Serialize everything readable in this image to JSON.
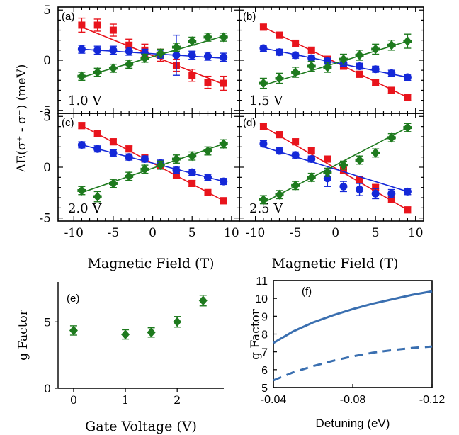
{
  "colors": {
    "red": "#e8141c",
    "blue": "#1428d8",
    "green": "#1e7a1e",
    "f_line": "#3a6fb0"
  },
  "shared": {
    "ylabel": "ΔE(σ⁺ - σ⁻) (meV)",
    "xlabel": "Magnetic Field (T)",
    "y_ticks": [
      "5",
      "0",
      "-5"
    ],
    "x_ticks": [
      "-10",
      "-5",
      "0",
      "5",
      "10"
    ]
  },
  "chart_data": [
    {
      "type": "scatter",
      "panel": "(a)",
      "annotation": "1.0 V",
      "xlim": [
        -12,
        11
      ],
      "ylim": [
        -5.3,
        5.3
      ],
      "x": [
        -9,
        -7,
        -5,
        -3,
        -1,
        1,
        3,
        5,
        7,
        9
      ],
      "series": [
        {
          "color": "red",
          "values": [
            3.5,
            3.5,
            3.0,
            1.5,
            1.0,
            0.5,
            -0.5,
            -1.5,
            -2.2,
            -2.3
          ],
          "err": [
            0.7,
            0.6,
            0.6,
            0.6,
            0.6,
            0.6,
            0.6,
            0.6,
            0.6,
            0.7
          ],
          "fit": [
            [
              -9,
              3.3
            ],
            [
              9,
              -2.4
            ]
          ]
        },
        {
          "color": "blue",
          "values": [
            1.1,
            1.0,
            1.0,
            0.9,
            0.7,
            0.6,
            0.5,
            0.5,
            0.4,
            0.3
          ],
          "err": [
            0.4,
            0.4,
            0.4,
            0.4,
            0.4,
            0.4,
            2.0,
            0.4,
            0.4,
            0.4
          ],
          "fit": [
            [
              -9,
              1.1
            ],
            [
              9,
              0.2
            ]
          ]
        },
        {
          "color": "green",
          "values": [
            -1.6,
            -1.2,
            -0.8,
            -0.4,
            0.2,
            0.7,
            1.3,
            1.9,
            2.3,
            2.3
          ],
          "err": [
            0.4,
            0.4,
            0.4,
            0.4,
            0.4,
            0.4,
            0.4,
            0.4,
            0.4,
            0.4
          ],
          "fit": [
            [
              -9,
              -1.7
            ],
            [
              9,
              2.4
            ]
          ]
        }
      ]
    },
    {
      "type": "scatter",
      "panel": "(b)",
      "annotation": "1.5 V",
      "xlim": [
        -12,
        11
      ],
      "ylim": [
        -5.3,
        5.3
      ],
      "x": [
        -9,
        -7,
        -5,
        -3,
        -1,
        1,
        3,
        5,
        7,
        9
      ],
      "series": [
        {
          "color": "red",
          "values": [
            3.3,
            2.5,
            1.7,
            1.0,
            0.1,
            -0.6,
            -1.4,
            -2.2,
            -3.0,
            -3.7
          ],
          "err": [
            0.3,
            0.3,
            0.3,
            0.3,
            0.3,
            0.3,
            0.3,
            0.3,
            0.3,
            0.3
          ],
          "fit": [
            [
              -9,
              3.3
            ],
            [
              9,
              -3.7
            ]
          ]
        },
        {
          "color": "blue",
          "values": [
            1.2,
            0.8,
            0.5,
            0.2,
            -0.1,
            -0.3,
            -0.6,
            -0.9,
            -1.3,
            -1.7
          ],
          "err": [
            0.3,
            0.3,
            0.3,
            0.3,
            0.3,
            0.3,
            0.3,
            0.3,
            0.3,
            0.3
          ],
          "fit": [
            [
              -9,
              1.2
            ],
            [
              9,
              -1.7
            ]
          ]
        },
        {
          "color": "green",
          "values": [
            -2.3,
            -1.8,
            -1.2,
            -0.6,
            -0.7,
            0.1,
            0.5,
            1.1,
            1.5,
            1.9
          ],
          "err": [
            0.5,
            0.5,
            0.5,
            0.5,
            0.5,
            0.5,
            0.5,
            0.5,
            0.5,
            0.7
          ],
          "fit": [
            [
              -9,
              -2.5
            ],
            [
              9,
              1.9
            ]
          ]
        }
      ]
    },
    {
      "type": "scatter",
      "panel": "(c)",
      "annotation": "2.0 V",
      "xlim": [
        -12,
        11
      ],
      "ylim": [
        -5.3,
        5.3
      ],
      "x": [
        -9,
        -7,
        -5,
        -3,
        -1,
        1,
        3,
        5,
        7,
        9
      ],
      "series": [
        {
          "color": "red",
          "values": [
            4.1,
            3.3,
            2.5,
            1.8,
            0.9,
            0.2,
            -0.8,
            -1.6,
            -2.5,
            -3.3
          ],
          "err": [
            0.3,
            0.3,
            0.3,
            0.3,
            0.3,
            0.3,
            0.3,
            0.3,
            0.3,
            0.3
          ],
          "fit": [
            [
              -9,
              4.1
            ],
            [
              9,
              -3.3
            ]
          ]
        },
        {
          "color": "blue",
          "values": [
            2.2,
            1.8,
            1.4,
            1.0,
            0.8,
            0.4,
            -0.3,
            -0.5,
            -1.0,
            -1.4
          ],
          "err": [
            0.3,
            0.3,
            0.3,
            0.3,
            0.3,
            0.3,
            0.3,
            0.3,
            0.3,
            0.3
          ],
          "fit": [
            [
              -9,
              2.2
            ],
            [
              9,
              -1.4
            ]
          ]
        },
        {
          "color": "green",
          "values": [
            -2.3,
            -2.9,
            -1.6,
            -0.9,
            -0.2,
            0.2,
            0.8,
            1.1,
            1.6,
            2.3
          ],
          "err": [
            0.4,
            0.5,
            0.4,
            0.4,
            0.4,
            0.4,
            0.4,
            0.4,
            0.4,
            0.4
          ],
          "fit": [
            [
              -9,
              -2.5
            ],
            [
              9,
              2.3
            ]
          ]
        }
      ]
    },
    {
      "type": "scatter",
      "panel": "(d)",
      "annotation": "2.5 V",
      "xlim": [
        -12,
        11
      ],
      "ylim": [
        -5.3,
        5.3
      ],
      "x": [
        -9,
        -7,
        -5,
        -3,
        -1,
        1,
        3,
        5,
        7,
        9
      ],
      "series": [
        {
          "color": "red",
          "values": [
            4.0,
            3.2,
            2.5,
            1.6,
            0.8,
            -0.3,
            -1.2,
            -2.0,
            -3.2,
            -4.2
          ],
          "err": [
            0.3,
            0.3,
            0.3,
            0.3,
            0.3,
            0.3,
            0.3,
            0.3,
            0.3,
            0.3
          ],
          "fit": [
            [
              -9,
              4.0
            ],
            [
              9,
              -4.2
            ]
          ]
        },
        {
          "color": "blue",
          "values": [
            2.3,
            1.6,
            1.2,
            0.8,
            -1.1,
            -1.9,
            -2.2,
            -2.6,
            -2.6,
            -2.4
          ],
          "err": [
            0.3,
            0.3,
            0.3,
            0.3,
            0.8,
            0.5,
            0.6,
            0.5,
            0.4,
            0.3
          ],
          "fit": [
            [
              -9,
              2.0
            ],
            [
              9,
              -2.4
            ]
          ]
        },
        {
          "color": "green",
          "values": [
            -3.2,
            -2.7,
            -1.8,
            -1.0,
            -0.5,
            0.2,
            0.7,
            1.4,
            2.9,
            3.9
          ],
          "err": [
            0.4,
            0.4,
            0.4,
            0.4,
            0.4,
            0.4,
            0.4,
            0.4,
            0.4,
            0.4
          ],
          "fit": [
            [
              -9,
              -3.5
            ],
            [
              9,
              3.9
            ]
          ]
        }
      ]
    },
    {
      "type": "scatter",
      "panel": "(e)",
      "xlabel": "Gate Voltage (V)",
      "ylabel": "g Factor",
      "xlim": [
        -0.3,
        2.9
      ],
      "ylim": [
        0,
        8
      ],
      "x_ticks": [
        "0",
        "1",
        "2"
      ],
      "y_ticks": [
        "0",
        "5"
      ],
      "x": [
        0,
        1,
        1.5,
        2,
        2.5
      ],
      "values": [
        4.35,
        4.05,
        4.2,
        5.0,
        6.6
      ],
      "err": [
        0.35,
        0.35,
        0.35,
        0.4,
        0.4
      ]
    },
    {
      "type": "line",
      "panel": "(f)",
      "xlabel": "Detuning (eV)",
      "ylabel": "g Factor",
      "xlim": [
        -0.04,
        -0.12
      ],
      "ylim": [
        5,
        11
      ],
      "x_ticks": [
        "-0.04",
        "-0.08",
        "-0.12"
      ],
      "y_ticks": [
        "11",
        "10",
        "9",
        "8",
        "7",
        "6",
        "5"
      ],
      "series": [
        {
          "style": "solid",
          "x": [
            -0.04,
            -0.05,
            -0.06,
            -0.07,
            -0.08,
            -0.09,
            -0.1,
            -0.11,
            -0.12
          ],
          "values": [
            7.5,
            8.15,
            8.65,
            9.05,
            9.4,
            9.7,
            9.95,
            10.2,
            10.4
          ]
        },
        {
          "style": "dashed",
          "x": [
            -0.04,
            -0.05,
            -0.06,
            -0.07,
            -0.08,
            -0.09,
            -0.1,
            -0.11,
            -0.12
          ],
          "values": [
            5.4,
            5.85,
            6.2,
            6.5,
            6.75,
            6.95,
            7.1,
            7.22,
            7.3
          ]
        }
      ]
    }
  ]
}
